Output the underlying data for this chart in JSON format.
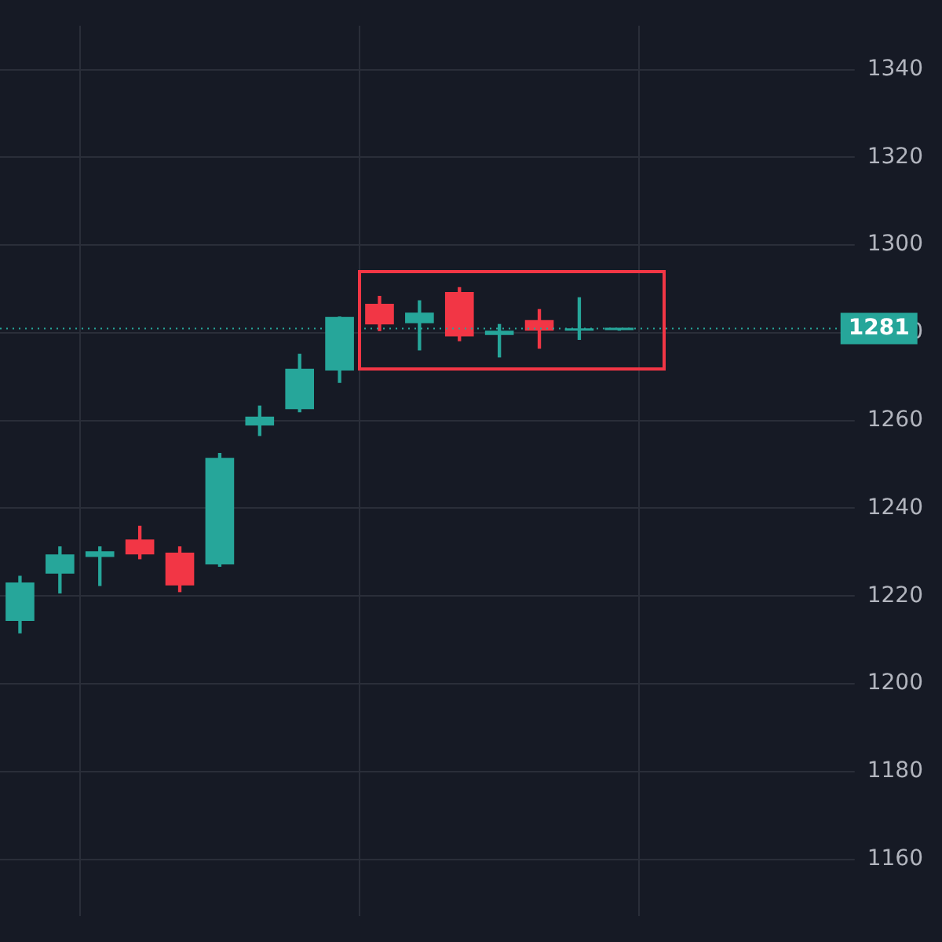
{
  "chart_data": {
    "type": "candlestick",
    "categories": [
      null,
      null,
      null,
      null,
      null,
      null,
      null,
      null,
      null,
      null,
      null,
      null,
      null,
      null,
      null,
      null,
      null,
      null,
      null,
      null,
      null
    ],
    "ohlc": [
      [
        1214.3,
        1224.5,
        1211.6,
        1223.1
      ],
      [
        1225.1,
        1231.2,
        1220.7,
        1229.5
      ],
      [
        1228.9,
        1231.2,
        1222.4,
        1230.2
      ],
      [
        1232.9,
        1235.9,
        1228.5,
        1229.5
      ],
      [
        1229.9,
        1231.2,
        1221,
        1222.4
      ],
      [
        1227.2,
        1252.5,
        1226.8,
        1251.5
      ],
      [
        1258.9,
        1263.3,
        1256.6,
        1260.9
      ],
      [
        1262.6,
        1275.1,
        1262,
        1271.8
      ],
      [
        1271.4,
        1283.6,
        1268.7,
        1283.6
      ],
      [
        1286.6,
        1288.3,
        1280.5,
        1281.9
      ],
      [
        1282.2,
        1287.3,
        1276.1,
        1284.6
      ],
      [
        1289.3,
        1290.3,
        1278.2,
        1279.2
      ],
      [
        1279.5,
        1281.9,
        1274.5,
        1280.5
      ],
      [
        1282.9,
        1285.3,
        1276.5,
        1280.5
      ],
      [
        1280.5,
        1288,
        1278.5,
        1280.7
      ],
      [
        1280.6,
        1280.6,
        1280.6,
        1280.6
      ],
      null,
      null,
      null,
      null,
      null
    ],
    "colors": [
      "#26a69a",
      "#26a69a",
      "#26a69a",
      "#f23645",
      "#f23645",
      "#26a69a",
      "#26a69a",
      "#26a69a",
      "#26a69a",
      "#f23645",
      "#26a69a",
      "#f23645",
      "#26a69a",
      "#f23645",
      "#26a69a",
      "#26a69a",
      null,
      null,
      null,
      null,
      null
    ],
    "ylim": [
      1147,
      1350
    ],
    "yticks": [
      1160,
      1180,
      1200,
      1220,
      1240,
      1260,
      1280,
      1300,
      1320,
      1340
    ],
    "ref_lines": [
      {
        "axis": "y",
        "value": 1281,
        "label": "1281",
        "color": "#26a69a",
        "line_style": "dotted"
      }
    ],
    "grid": true,
    "legend": false
  }
}
